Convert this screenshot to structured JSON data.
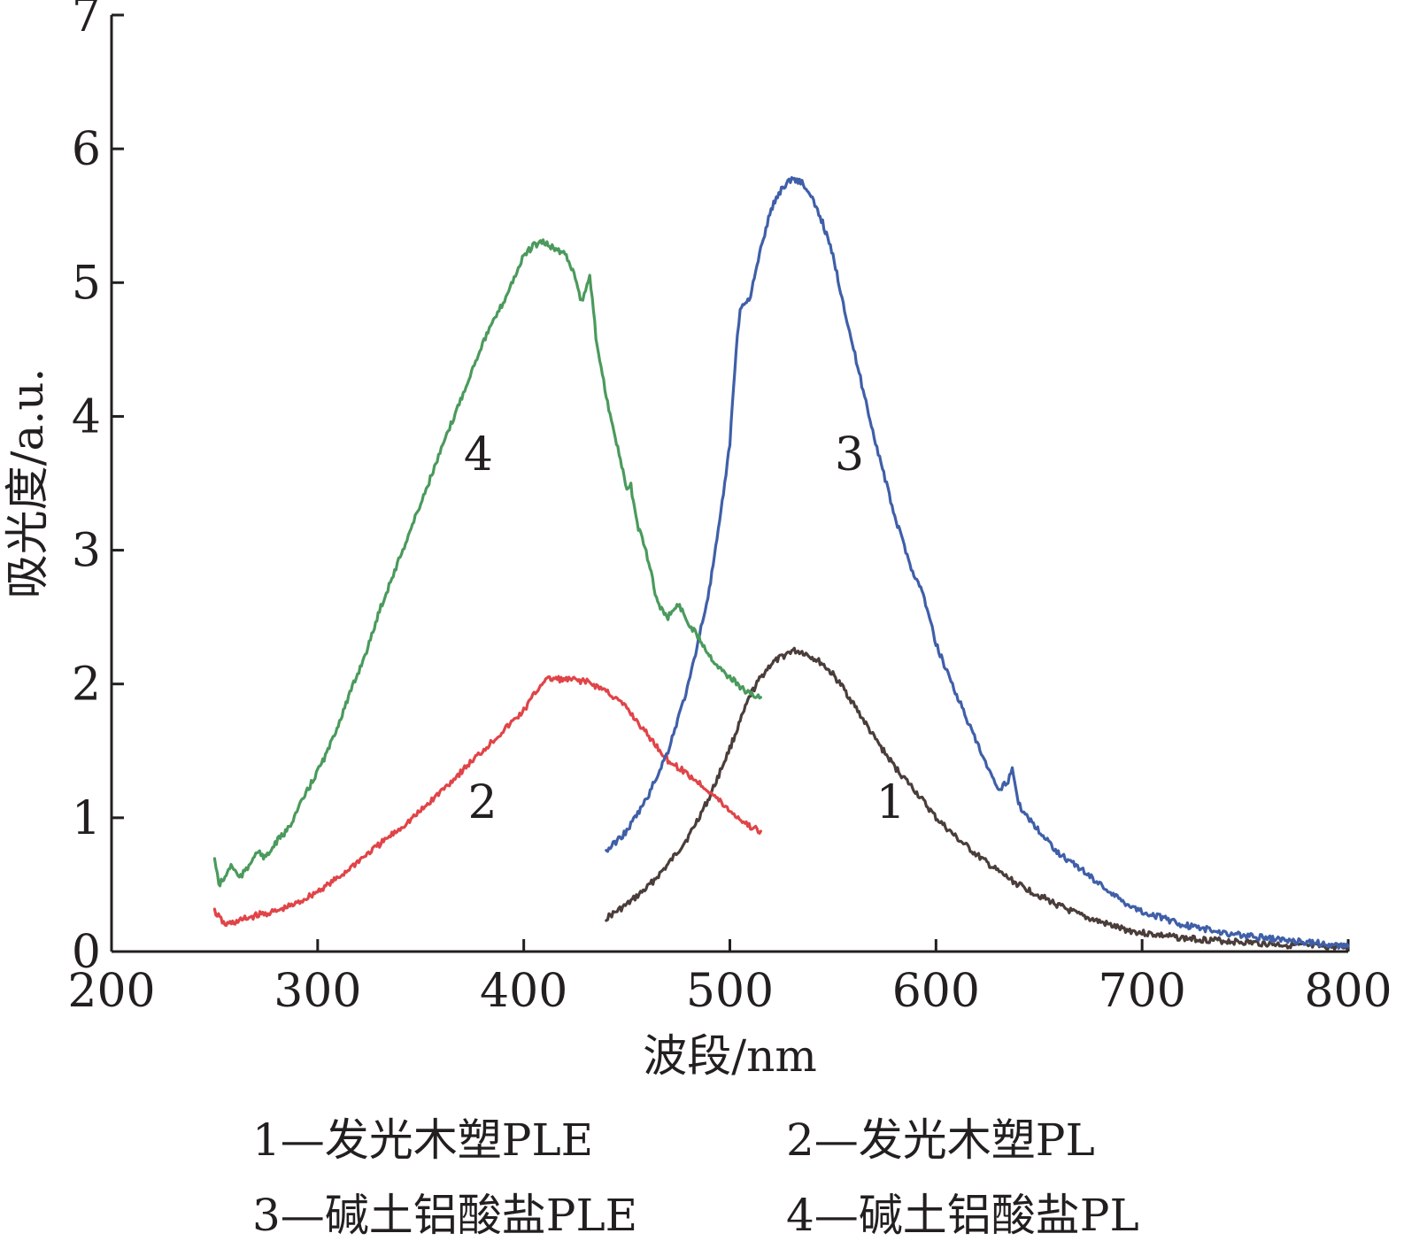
{
  "chart_data": {
    "type": "line",
    "xlabel": "波段/nm",
    "ylabel": "吸光度/a.u.",
    "xlim": [
      200,
      800
    ],
    "ylim": [
      0,
      7
    ],
    "xticks": [
      200,
      300,
      400,
      500,
      600,
      700,
      800
    ],
    "yticks": [
      0,
      1,
      2,
      3,
      4,
      5,
      6,
      7
    ],
    "grid": false,
    "legend": {
      "placement": "bottom",
      "entries": [
        "1—发光木塑PLE",
        "2—发光木塑PL",
        "3—碱土铝酸盐PLE",
        "4—碱土铝酸盐PL"
      ]
    },
    "series": [
      {
        "label": "1",
        "color": "#4a3d3a",
        "label_pos": [
          578,
          1.0
        ],
        "x": [
          440,
          450,
          460,
          470,
          480,
          490,
          500,
          505,
          510,
          515,
          520,
          525,
          530,
          535,
          540,
          545,
          550,
          555,
          560,
          570,
          580,
          590,
          600,
          610,
          620,
          630,
          640,
          650,
          660,
          670,
          680,
          690,
          700,
          720,
          740,
          760,
          780,
          800
        ],
        "y": [
          0.25,
          0.35,
          0.48,
          0.65,
          0.86,
          1.15,
          1.52,
          1.72,
          1.92,
          2.05,
          2.15,
          2.2,
          2.25,
          2.24,
          2.2,
          2.15,
          2.07,
          1.97,
          1.85,
          1.6,
          1.38,
          1.2,
          1.0,
          0.85,
          0.72,
          0.6,
          0.5,
          0.42,
          0.34,
          0.27,
          0.22,
          0.17,
          0.14,
          0.1,
          0.08,
          0.06,
          0.04,
          0.03
        ]
      },
      {
        "label": "2",
        "color": "#e04448",
        "label_pos": [
          380,
          1.0
        ],
        "x": [
          250,
          255,
          260,
          270,
          280,
          290,
          300,
          310,
          320,
          330,
          340,
          350,
          360,
          370,
          380,
          390,
          400,
          405,
          410,
          415,
          420,
          425,
          430,
          440,
          450,
          460,
          470,
          480,
          490,
          500,
          510,
          515
        ],
        "y": [
          0.3,
          0.2,
          0.22,
          0.27,
          0.3,
          0.36,
          0.45,
          0.55,
          0.68,
          0.8,
          0.92,
          1.05,
          1.2,
          1.35,
          1.5,
          1.65,
          1.8,
          1.92,
          2.03,
          2.04,
          2.03,
          2.03,
          2.02,
          1.95,
          1.82,
          1.62,
          1.43,
          1.32,
          1.2,
          1.05,
          0.93,
          0.9
        ]
      },
      {
        "label": "3",
        "color": "#3f5fa8",
        "label_pos": [
          558,
          3.6
        ],
        "x": [
          440,
          450,
          460,
          470,
          480,
          490,
          495,
          500,
          503,
          505,
          510,
          515,
          520,
          525,
          530,
          535,
          540,
          545,
          550,
          555,
          560,
          570,
          580,
          590,
          592,
          595,
          600,
          610,
          620,
          630,
          635,
          637,
          640,
          650,
          660,
          670,
          680,
          690,
          700,
          720,
          740,
          760,
          780,
          800
        ],
        "y": [
          0.75,
          0.9,
          1.15,
          1.5,
          2.0,
          2.7,
          3.2,
          3.8,
          4.5,
          4.8,
          4.9,
          5.25,
          5.55,
          5.7,
          5.78,
          5.75,
          5.62,
          5.45,
          5.2,
          4.85,
          4.5,
          3.85,
          3.25,
          2.78,
          2.75,
          2.6,
          2.3,
          1.92,
          1.55,
          1.2,
          1.28,
          1.38,
          1.1,
          0.9,
          0.73,
          0.62,
          0.5,
          0.38,
          0.3,
          0.2,
          0.14,
          0.1,
          0.07,
          0.04
        ]
      },
      {
        "label": "4",
        "color": "#4a9a5c",
        "label_pos": [
          378,
          3.6
        ],
        "x": [
          250,
          252,
          255,
          258,
          262,
          266,
          270,
          275,
          280,
          285,
          290,
          295,
          300,
          305,
          310,
          315,
          320,
          325,
          330,
          340,
          350,
          360,
          370,
          380,
          390,
          400,
          405,
          410,
          415,
          420,
          425,
          428,
          430,
          432,
          435,
          440,
          445,
          450,
          452,
          455,
          460,
          465,
          470,
          475,
          480,
          485,
          490,
          495,
          500,
          505,
          510,
          515
        ],
        "y": [
          0.7,
          0.5,
          0.55,
          0.65,
          0.55,
          0.62,
          0.75,
          0.7,
          0.82,
          0.9,
          1.05,
          1.2,
          1.35,
          1.5,
          1.7,
          1.9,
          2.1,
          2.3,
          2.55,
          2.95,
          3.35,
          3.75,
          4.15,
          4.55,
          4.85,
          5.2,
          5.28,
          5.3,
          5.25,
          5.22,
          5.05,
          4.85,
          4.95,
          5.05,
          4.6,
          4.15,
          3.8,
          3.45,
          3.48,
          3.2,
          2.95,
          2.6,
          2.5,
          2.6,
          2.45,
          2.35,
          2.22,
          2.12,
          2.05,
          1.98,
          1.92,
          1.9
        ]
      }
    ]
  }
}
